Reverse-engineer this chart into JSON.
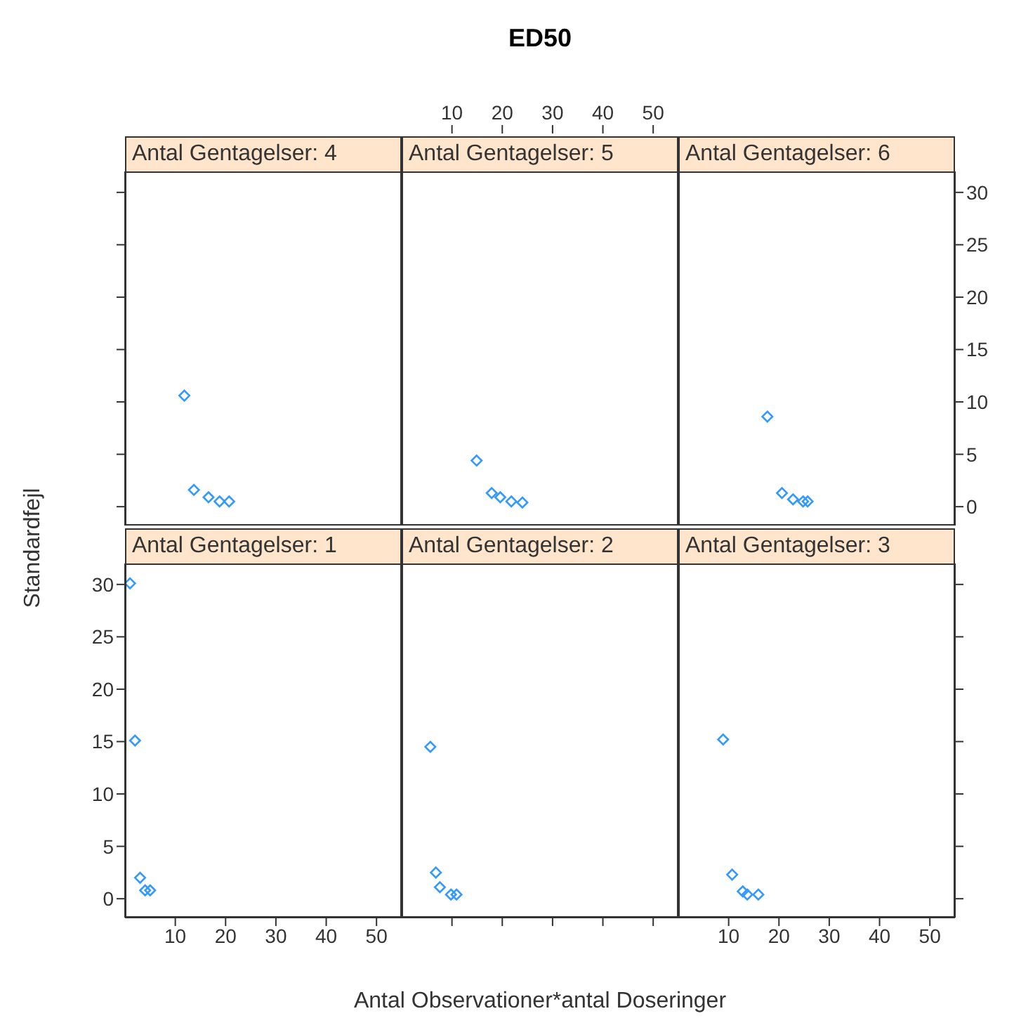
{
  "chart_data": [
    {
      "type": "scatter",
      "title": "Antal Gentagelser: 4",
      "x": [
        11.8,
        13.7,
        16.6,
        18.8,
        20.7
      ],
      "series": [
        {
          "color": "#3399ff",
          "values": [
            10.6,
            1.6,
            0.9,
            0.5,
            0.5
          ]
        }
      ],
      "xlim": [
        0,
        55
      ],
      "ylim": [
        -1.8,
        32
      ],
      "xticks": [
        10,
        20,
        30,
        40,
        50
      ],
      "yticks": [
        0,
        5,
        10,
        15,
        20,
        25,
        30
      ],
      "tick_labels": false,
      "marker": "diamond",
      "grid": false,
      "legend": false
    },
    {
      "type": "scatter",
      "title": "Antal Gentagelser: 5",
      "annotations": [
        "ED50"
      ],
      "x": [
        14.9,
        17.9,
        19.6,
        21.8,
        24.0
      ],
      "series": [
        {
          "color": "#3399ff",
          "values": [
            4.4,
            1.3,
            0.9,
            0.5,
            0.4
          ]
        }
      ],
      "xlim": [
        0,
        55
      ],
      "ylim": [
        -1.8,
        32
      ],
      "xticks": [
        10,
        20,
        30,
        40,
        50
      ],
      "yticks": [
        0,
        5,
        10,
        15,
        20,
        25,
        30
      ],
      "tick_labels": "x",
      "marker": "diamond",
      "grid": false,
      "legend": false
    },
    {
      "type": "scatter",
      "title": "Antal Gentagelser: 6",
      "x": [
        17.7,
        20.6,
        22.8,
        24.8,
        25.7
      ],
      "series": [
        {
          "color": "#3399ff",
          "values": [
            8.6,
            1.3,
            0.7,
            0.5,
            0.5
          ]
        }
      ],
      "xlim": [
        0,
        55
      ],
      "ylim": [
        -1.8,
        32
      ],
      "xticks": [
        10,
        20,
        30,
        40,
        50
      ],
      "yticks": [
        0,
        5,
        10,
        15,
        20,
        25,
        30
      ],
      "tick_labels": "y",
      "marker": "diamond",
      "grid": false,
      "legend": false
    },
    {
      "type": "scatter",
      "title": "Antal Gentagelser: 1",
      "ylabel": "Standardfejl",
      "x": [
        1,
        2,
        3,
        4,
        5
      ],
      "series": [
        {
          "color": "#3399ff",
          "values": [
            30.1,
            15.1,
            2.0,
            0.8,
            0.8
          ]
        }
      ],
      "xlim": [
        0,
        55
      ],
      "ylim": [
        -1.8,
        32
      ],
      "xticks": [
        10,
        20,
        30,
        40,
        50
      ],
      "yticks": [
        0,
        5,
        10,
        15,
        20,
        25,
        30
      ],
      "marker": "diamond",
      "grid": false,
      "legend": false
    },
    {
      "type": "scatter",
      "title": "Antal Gentagelser: 2",
      "xlabel": "Antal Observationer*antal Doseringer",
      "x": [
        5.7,
        6.8,
        7.6,
        9.8,
        10.9
      ],
      "series": [
        {
          "color": "#3399ff",
          "values": [
            14.5,
            2.5,
            1.1,
            0.4,
            0.4
          ]
        }
      ],
      "xlim": [
        0,
        55
      ],
      "ylim": [
        -1.8,
        32
      ],
      "xticks": [
        10,
        20,
        30,
        40,
        50
      ],
      "yticks": [
        0,
        5,
        10,
        15,
        20,
        25,
        30
      ],
      "tick_labels": false,
      "marker": "diamond",
      "grid": false,
      "legend": false
    },
    {
      "type": "scatter",
      "title": "Antal Gentagelser: 3",
      "x": [
        8.9,
        10.7,
        12.8,
        13.7,
        15.9
      ],
      "series": [
        {
          "color": "#3399ff",
          "values": [
            15.2,
            2.3,
            0.7,
            0.4,
            0.4
          ]
        }
      ],
      "xlim": [
        0,
        55
      ],
      "ylim": [
        -1.8,
        32
      ],
      "xticks": [
        10,
        20,
        30,
        40,
        50
      ],
      "yticks": [
        0,
        5,
        10,
        15,
        20,
        25,
        30
      ],
      "tick_labels": "x",
      "marker": "diamond",
      "grid": false,
      "legend": false
    }
  ]
}
